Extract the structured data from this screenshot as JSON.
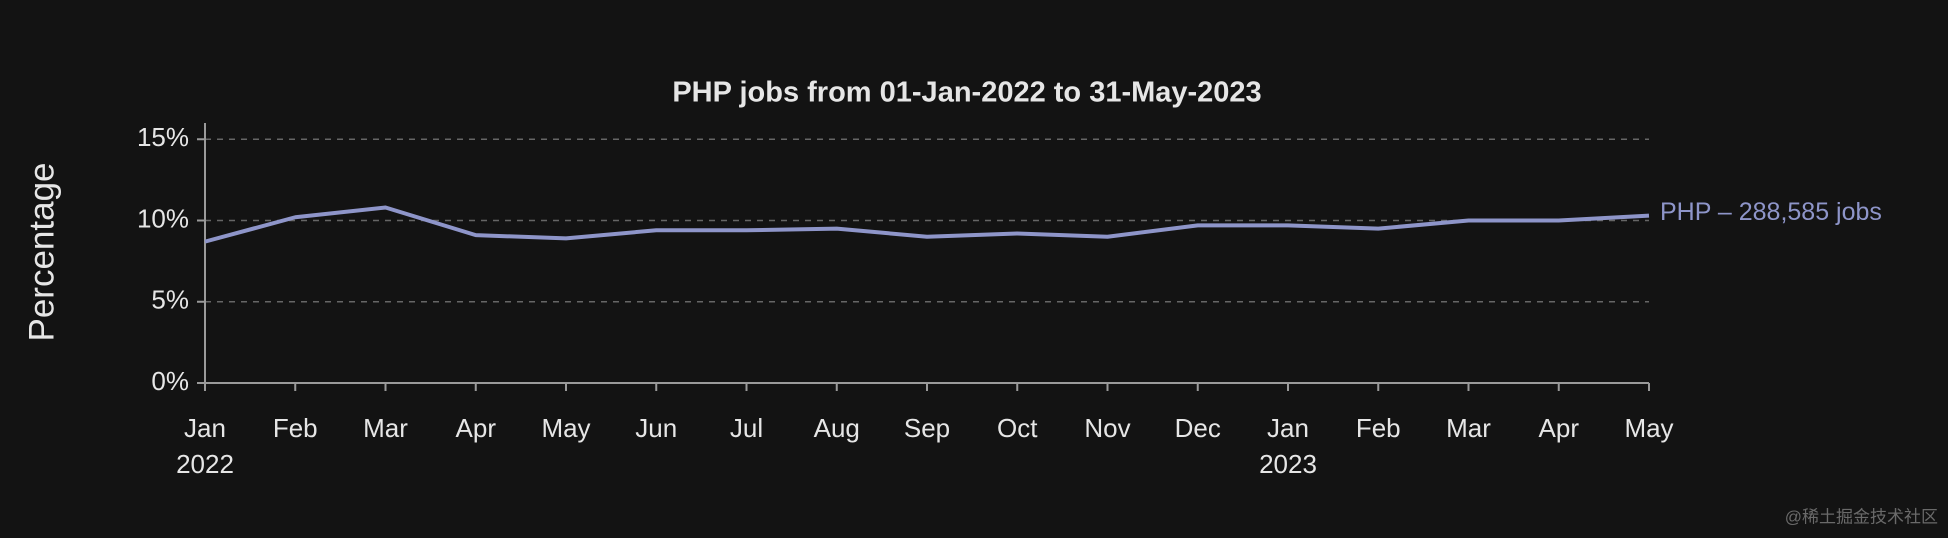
{
  "chart_data": {
    "type": "line",
    "title": "PHP jobs from 01-Jan-2022 to 31-May-2023",
    "y_label": "Percentage",
    "categories": [
      "Jan",
      "Feb",
      "Mar",
      "Apr",
      "May",
      "Jun",
      "Jul",
      "Aug",
      "Sep",
      "Oct",
      "Nov",
      "Dec",
      "Jan",
      "Feb",
      "Mar",
      "Apr",
      "May"
    ],
    "year_labels": [
      "2022",
      null,
      null,
      null,
      null,
      null,
      null,
      null,
      null,
      null,
      null,
      null,
      "2023",
      null,
      null,
      null,
      null
    ],
    "values": [
      8.7,
      10.2,
      10.8,
      9.1,
      8.9,
      9.4,
      9.4,
      9.5,
      9.0,
      9.2,
      9.0,
      9.7,
      9.7,
      9.5,
      10.0,
      10.0,
      10.3
    ],
    "color": "#8e95c9",
    "annotation": "PHP – 288,585 jobs",
    "ylim": [
      0,
      16
    ],
    "yticks": [
      {
        "value": 0,
        "label": "0%"
      },
      {
        "value": 5,
        "label": "5%"
      },
      {
        "value": 10,
        "label": "10%"
      },
      {
        "value": 15,
        "label": "15%"
      }
    ],
    "grid": true,
    "watermark": "@稀土掘金技术社区"
  }
}
